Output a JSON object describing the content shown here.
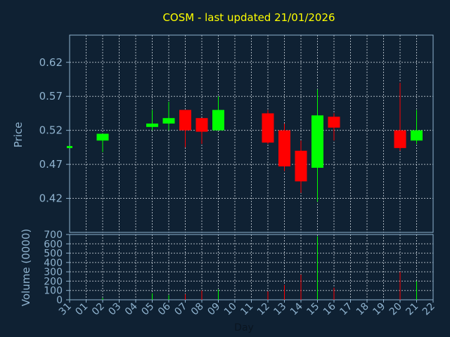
{
  "chart_data": {
    "type": "candlestick",
    "title": "COSM - last updated 21/01/2026",
    "ylabel": "Price",
    "volume_label": "Volume (0000)",
    "xlabel": "Day",
    "price_ylim": [
      0.37,
      0.66
    ],
    "price_ticks": [
      "0.42",
      "0.47",
      "0.52",
      "0.57",
      "0.62"
    ],
    "volume_ylim": [
      0,
      700
    ],
    "volume_ticks": [
      "0",
      "100",
      "200",
      "300",
      "400",
      "500",
      "600",
      "700"
    ],
    "x_ticks": [
      "31",
      "01",
      "02",
      "03",
      "04",
      "05",
      "06",
      "07",
      "08",
      "09",
      "10",
      "11",
      "12",
      "13",
      "14",
      "15",
      "16",
      "17",
      "18",
      "19",
      "20",
      "21",
      "22"
    ],
    "grid": true,
    "colors": {
      "up": "#00ff00",
      "down": "#ff0000",
      "title": "#ffff00",
      "background": "#0f2133",
      "grid": "#d0d8e0"
    },
    "candles": [
      {
        "x": "31",
        "open": 0.497,
        "high": 0.497,
        "low": 0.497,
        "close": 0.497,
        "volume": 2
      },
      {
        "x": "02",
        "open": 0.505,
        "high": 0.515,
        "low": 0.488,
        "close": 0.515,
        "volume": 20
      },
      {
        "x": "05",
        "open": 0.525,
        "high": 0.55,
        "low": 0.52,
        "close": 0.53,
        "volume": 70
      },
      {
        "x": "06",
        "open": 0.53,
        "high": 0.562,
        "low": 0.52,
        "close": 0.538,
        "volume": 50
      },
      {
        "x": "07",
        "open": 0.55,
        "high": 0.55,
        "low": 0.495,
        "close": 0.52,
        "volume": 60
      },
      {
        "x": "08",
        "open": 0.538,
        "high": 0.538,
        "low": 0.5,
        "close": 0.518,
        "volume": 100
      },
      {
        "x": "09",
        "open": 0.52,
        "high": 0.57,
        "low": 0.52,
        "close": 0.55,
        "volume": 110
      },
      {
        "x": "12",
        "open": 0.545,
        "high": 0.55,
        "low": 0.5,
        "close": 0.502,
        "volume": 90
      },
      {
        "x": "13",
        "open": 0.52,
        "high": 0.53,
        "low": 0.46,
        "close": 0.467,
        "volume": 160
      },
      {
        "x": "14",
        "open": 0.49,
        "high": 0.505,
        "low": 0.428,
        "close": 0.445,
        "volume": 270
      },
      {
        "x": "15",
        "open": 0.465,
        "high": 0.58,
        "low": 0.415,
        "close": 0.542,
        "volume": 680
      },
      {
        "x": "16",
        "open": 0.54,
        "high": 0.545,
        "low": 0.505,
        "close": 0.524,
        "volume": 130
      },
      {
        "x": "20",
        "open": 0.52,
        "high": 0.59,
        "low": 0.49,
        "close": 0.494,
        "volume": 300
      },
      {
        "x": "21",
        "open": 0.505,
        "high": 0.55,
        "low": 0.5,
        "close": 0.52,
        "volume": 200
      }
    ]
  }
}
